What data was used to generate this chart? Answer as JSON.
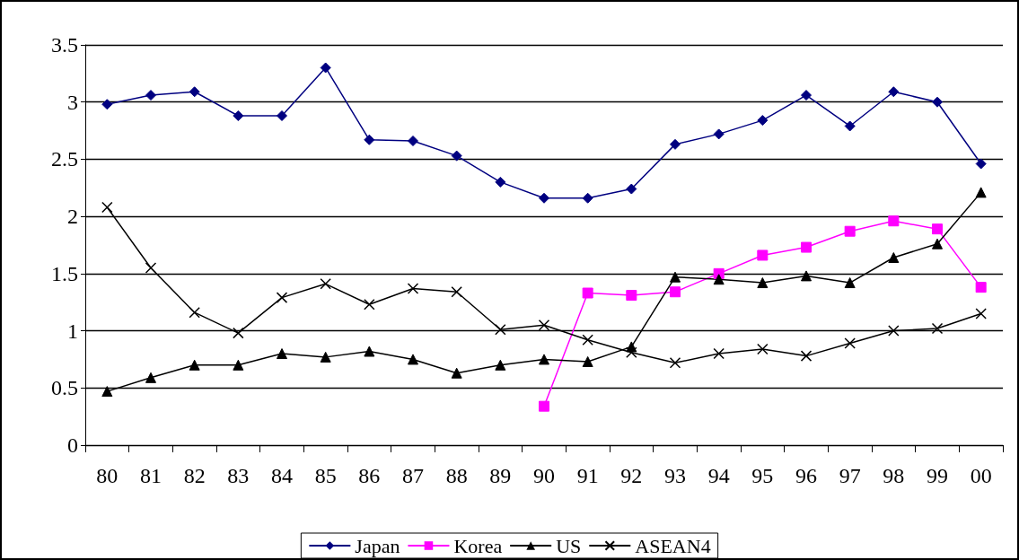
{
  "chart_data": {
    "type": "line",
    "categories": [
      "80",
      "81",
      "82",
      "83",
      "84",
      "85",
      "86",
      "87",
      "88",
      "89",
      "90",
      "91",
      "92",
      "93",
      "94",
      "95",
      "96",
      "97",
      "98",
      "99",
      "00"
    ],
    "series": [
      {
        "name": "Japan",
        "color": "#000080",
        "marker": "diamond",
        "values": [
          2.98,
          3.06,
          3.09,
          2.88,
          2.88,
          3.3,
          2.67,
          2.66,
          2.53,
          2.3,
          2.16,
          2.16,
          2.24,
          2.63,
          2.72,
          2.84,
          3.06,
          2.79,
          3.09,
          3.0,
          2.46
        ]
      },
      {
        "name": "Korea",
        "color": "#ff00ff",
        "marker": "square",
        "values": [
          null,
          null,
          null,
          null,
          null,
          null,
          null,
          null,
          null,
          null,
          0.34,
          1.33,
          1.31,
          1.34,
          1.5,
          1.66,
          1.73,
          1.87,
          1.96,
          1.89,
          1.38
        ]
      },
      {
        "name": "US",
        "color": "#000000",
        "marker": "triangle",
        "values": [
          0.47,
          0.59,
          0.7,
          0.7,
          0.8,
          0.77,
          0.82,
          0.75,
          0.63,
          0.7,
          0.75,
          0.73,
          0.86,
          1.47,
          1.45,
          1.42,
          1.48,
          1.42,
          1.64,
          1.76,
          2.21
        ]
      },
      {
        "name": "ASEAN4",
        "color": "#000000",
        "marker": "cross",
        "values": [
          2.08,
          1.55,
          1.16,
          0.98,
          1.29,
          1.41,
          1.23,
          1.37,
          1.34,
          1.01,
          1.05,
          0.92,
          0.81,
          0.72,
          0.8,
          0.84,
          0.78,
          0.89,
          1.0,
          1.02,
          1.15
        ]
      }
    ],
    "ylim": [
      0,
      3.5
    ],
    "yticks": [
      0,
      0.5,
      1,
      1.5,
      2,
      2.5,
      3,
      3.5
    ],
    "grid": "y",
    "legend": "bottom"
  }
}
